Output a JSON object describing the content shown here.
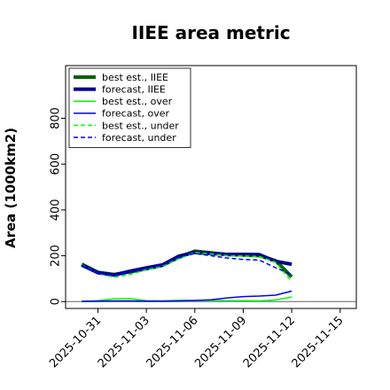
{
  "chart_data": {
    "type": "line",
    "title": "IIEE area metric",
    "xlabel": "",
    "ylabel": "Area (1000km2)",
    "xlim": [
      "2025-10-29",
      "2025-11-16"
    ],
    "ylim": [
      -30,
      1030
    ],
    "x_ticks": [
      "2025-10-31",
      "2025-11-03",
      "2025-11-06",
      "2025-11-09",
      "2025-11-12",
      "2025-11-15"
    ],
    "x_tick_colors": [
      "#000000",
      "#000000",
      "#228B22",
      "#000000",
      "#000000",
      "#000000"
    ],
    "y_ticks": [
      0,
      200,
      400,
      600,
      800
    ],
    "grid": false,
    "legend_position": "top-left",
    "reference_line": {
      "y": 0,
      "color": "#808080"
    },
    "series": [
      {
        "name": "best est., IIEE",
        "color": "#006400",
        "width": 4,
        "dash": "solid",
        "x": [
          "2025-10-30",
          "2025-10-31",
          "2025-11-01",
          "2025-11-02",
          "2025-11-03",
          "2025-11-04",
          "2025-11-05",
          "2025-11-06",
          "2025-11-07",
          "2025-11-08",
          "2025-11-09",
          "2025-11-10",
          "2025-11-11",
          "2025-11-12"
        ],
        "values": [
          163,
          128,
          118,
          130,
          143,
          158,
          193,
          220,
          213,
          205,
          203,
          200,
          178,
          108
        ]
      },
      {
        "name": "forecast, IIEE",
        "color": "#00008B",
        "width": 4,
        "dash": "solid",
        "x": [
          "2025-10-30",
          "2025-10-31",
          "2025-11-01",
          "2025-11-02",
          "2025-11-03",
          "2025-11-04",
          "2025-11-05",
          "2025-11-06",
          "2025-11-07",
          "2025-11-08",
          "2025-11-09",
          "2025-11-10",
          "2025-11-11",
          "2025-11-12"
        ],
        "values": [
          160,
          126,
          116,
          133,
          147,
          160,
          198,
          215,
          210,
          206,
          206,
          205,
          176,
          163
        ]
      },
      {
        "name": "best est., over",
        "color": "#00FF00",
        "width": 1.5,
        "dash": "solid",
        "x": [
          "2025-10-30",
          "2025-10-31",
          "2025-11-01",
          "2025-11-02",
          "2025-11-03",
          "2025-11-04",
          "2025-11-05",
          "2025-11-06",
          "2025-11-07",
          "2025-11-08",
          "2025-11-09",
          "2025-11-10",
          "2025-11-11",
          "2025-11-12"
        ],
        "values": [
          2,
          4,
          12,
          13,
          4,
          3,
          6,
          5,
          5,
          4,
          4,
          3,
          7,
          20
        ]
      },
      {
        "name": "forecast, over",
        "color": "#0000FF",
        "width": 1.5,
        "dash": "solid",
        "x": [
          "2025-10-30",
          "2025-10-31",
          "2025-11-01",
          "2025-11-02",
          "2025-11-03",
          "2025-11-04",
          "2025-11-05",
          "2025-11-06",
          "2025-11-07",
          "2025-11-08",
          "2025-11-09",
          "2025-11-10",
          "2025-11-11",
          "2025-11-12"
        ],
        "values": [
          1,
          2,
          3,
          3,
          2,
          2,
          3,
          5,
          8,
          16,
          22,
          24,
          28,
          46
        ]
      },
      {
        "name": "best est., under",
        "color": "#00FF00",
        "width": 1.5,
        "dash": "dashed",
        "x": [
          "2025-10-30",
          "2025-10-31",
          "2025-11-01",
          "2025-11-02",
          "2025-11-03",
          "2025-11-04",
          "2025-11-05",
          "2025-11-06",
          "2025-11-07",
          "2025-11-08",
          "2025-11-09",
          "2025-11-10",
          "2025-11-11",
          "2025-11-12"
        ],
        "values": [
          161,
          124,
          106,
          118,
          139,
          155,
          187,
          215,
          208,
          200,
          199,
          197,
          171,
          88
        ]
      },
      {
        "name": "forecast, under",
        "color": "#0000FF",
        "width": 1.5,
        "dash": "dashed",
        "x": [
          "2025-10-30",
          "2025-10-31",
          "2025-11-01",
          "2025-11-02",
          "2025-11-03",
          "2025-11-04",
          "2025-11-05",
          "2025-11-06",
          "2025-11-07",
          "2025-11-08",
          "2025-11-09",
          "2025-11-10",
          "2025-11-11",
          "2025-11-12"
        ],
        "values": [
          159,
          124,
          113,
          130,
          145,
          158,
          195,
          210,
          200,
          190,
          184,
          181,
          148,
          117
        ]
      }
    ]
  }
}
